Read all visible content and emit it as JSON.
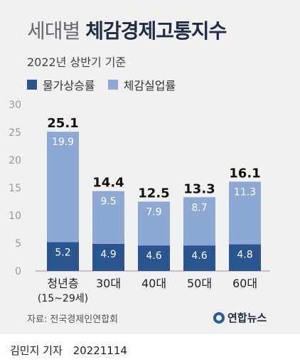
{
  "header": {
    "title_light": "세대별",
    "title_bold": "체감경제고통지수",
    "subtitle": "2022년 상반기 기준"
  },
  "legend": {
    "items": [
      {
        "label": "물가상승률",
        "color": "#2b5590"
      },
      {
        "label": "체감실업률",
        "color": "#8ca8d3"
      }
    ]
  },
  "chart_data": {
    "type": "bar",
    "stacked": true,
    "categories": [
      "청년층\n(15~29세)",
      "30대",
      "40대",
      "50대",
      "60대"
    ],
    "series": [
      {
        "name": "물가상승률",
        "values": [
          5.2,
          4.9,
          4.6,
          4.6,
          4.8
        ],
        "color": "#2b5590"
      },
      {
        "name": "체감실업률",
        "values": [
          19.9,
          9.5,
          7.9,
          8.7,
          11.3
        ],
        "color": "#8ca8d3"
      }
    ],
    "totals": [
      "25.1",
      "14.4",
      "12.5",
      "13.3",
      "16.1"
    ],
    "series_labels": [
      [
        "5.2",
        "4.9",
        "4.6",
        "4.6",
        "4.8"
      ],
      [
        "19.9",
        "9.5",
        "7.9",
        "8.7",
        "11.3"
      ]
    ],
    "yticks": [
      "0",
      "5",
      "10",
      "15",
      "20",
      "25",
      "30"
    ],
    "ylim": [
      0,
      30
    ],
    "grid": false,
    "legend_position": "top-left"
  },
  "source": "자료: 전국경제인연합회",
  "logo": "연합뉴스",
  "footer": {
    "author": "김민지 기자",
    "date": "20221114"
  }
}
